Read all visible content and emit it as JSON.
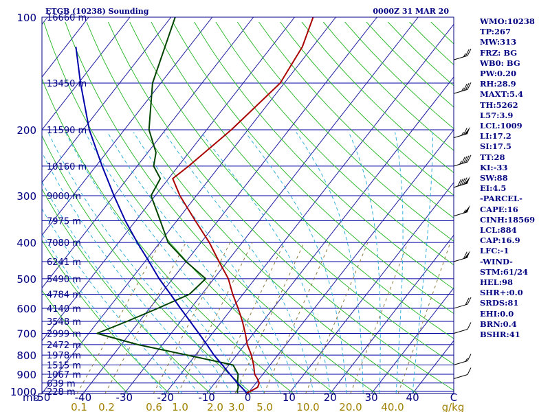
{
  "header": {
    "station_title": "ETGB (10238) Sounding",
    "time": "0000Z 31 MAR 20"
  },
  "colors": {
    "isobar": "#0000a0",
    "isotherm": "#1a1aa0",
    "dry_adiabat": "#33bb33",
    "moist_adiabat": "#33b0d8",
    "mixing_ratio": "#8c7a3c",
    "temperature": "#aa0000",
    "dewpoint": "#004400",
    "parcel": "#0000aa",
    "label": "#000080",
    "mixing_label": "#a08000"
  },
  "chart_data": {
    "type": "line",
    "diagram": "skew-t log-p",
    "axes": {
      "pressure_unit_label": "mb",
      "pressure_range": [
        1000,
        100
      ],
      "temperature_range_at_surface": [
        -50,
        50
      ],
      "mixing_ratio_unit": "g/kg",
      "grid": true
    },
    "pressure_ticks": [
      {
        "p": 100,
        "label": "100"
      },
      {
        "p": 200,
        "label": "200"
      },
      {
        "p": 300,
        "label": "300"
      },
      {
        "p": 400,
        "label": "400"
      },
      {
        "p": 500,
        "label": "500"
      },
      {
        "p": 600,
        "label": "600"
      },
      {
        "p": 700,
        "label": "700"
      },
      {
        "p": 800,
        "label": "800"
      },
      {
        "p": 900,
        "label": "900"
      },
      {
        "p": 1000,
        "label": "1000"
      }
    ],
    "temperature_ticks": [
      {
        "t": -50,
        "label": "-50"
      },
      {
        "t": -40,
        "label": "-40"
      },
      {
        "t": -30,
        "label": "-30"
      },
      {
        "t": -20,
        "label": "-20"
      },
      {
        "t": -10,
        "label": "-10"
      },
      {
        "t": 0,
        "label": "0"
      },
      {
        "t": 10,
        "label": "10"
      },
      {
        "t": 20,
        "label": "20"
      },
      {
        "t": 30,
        "label": "30"
      },
      {
        "t": 40,
        "label": "40"
      },
      {
        "t": 50,
        "label": "C"
      }
    ],
    "mixing_ratio_labels": [
      {
        "w": 0.1,
        "label": "0.1"
      },
      {
        "w": 0.2,
        "label": "0.2"
      },
      {
        "w": 0.6,
        "label": "0.6"
      },
      {
        "w": 1.0,
        "label": "1.0"
      },
      {
        "w": 2.0,
        "label": "2.0"
      },
      {
        "w": 3.0,
        "label": "3.0"
      },
      {
        "w": 5.0,
        "label": "5.0"
      },
      {
        "w": 10.0,
        "label": "10.0"
      },
      {
        "w": 20.0,
        "label": "20.0"
      },
      {
        "w": 40.0,
        "label": "40.0"
      },
      {
        "w": 0,
        "label": "g/kg"
      }
    ],
    "height_labels": [
      {
        "p": 100,
        "label": "16660 m"
      },
      {
        "p": 150,
        "label": "13450 m"
      },
      {
        "p": 200,
        "label": "11590 m"
      },
      {
        "p": 250,
        "label": "10160 m"
      },
      {
        "p": 300,
        "label": "9000 m"
      },
      {
        "p": 350,
        "label": "7975 m"
      },
      {
        "p": 400,
        "label": "7080 m"
      },
      {
        "p": 450,
        "label": "6241 m"
      },
      {
        "p": 500,
        "label": "5490 m"
      },
      {
        "p": 550,
        "label": "4784 m"
      },
      {
        "p": 600,
        "label": "4140 m"
      },
      {
        "p": 650,
        "label": "3548 m"
      },
      {
        "p": 700,
        "label": "2999 m"
      },
      {
        "p": 750,
        "label": "2472 m"
      },
      {
        "p": 800,
        "label": "1978 m"
      },
      {
        "p": 850,
        "label": "1515 m"
      },
      {
        "p": 900,
        "label": "1067 m"
      },
      {
        "p": 950,
        "label": "639 m"
      },
      {
        "p": 1000,
        "label": "228 m"
      }
    ],
    "series": [
      {
        "name": "temperature",
        "points": [
          [
            1011,
            -0.5
          ],
          [
            1000,
            0.2
          ],
          [
            975,
            1.2
          ],
          [
            950,
            0.8
          ],
          [
            925,
            -0.5
          ],
          [
            900,
            -2.0
          ],
          [
            850,
            -4.0
          ],
          [
            800,
            -6.4
          ],
          [
            750,
            -9.4
          ],
          [
            700,
            -12.0
          ],
          [
            650,
            -15.0
          ],
          [
            600,
            -18.5
          ],
          [
            550,
            -22.5
          ],
          [
            500,
            -26.5
          ],
          [
            450,
            -32.0
          ],
          [
            400,
            -38.0
          ],
          [
            350,
            -45.5
          ],
          [
            300,
            -54.0
          ],
          [
            270,
            -59.0
          ],
          [
            250,
            -57.5
          ],
          [
            200,
            -54.0
          ],
          [
            150,
            -51.0
          ],
          [
            120,
            -52.5
          ],
          [
            100,
            -55.5
          ]
        ]
      },
      {
        "name": "dewpoint",
        "points": [
          [
            1011,
            -2.5
          ],
          [
            1000,
            -3.0
          ],
          [
            975,
            -3.5
          ],
          [
            950,
            -4.5
          ],
          [
            900,
            -6.0
          ],
          [
            850,
            -9.0
          ],
          [
            800,
            -22.0
          ],
          [
            750,
            -36.0
          ],
          [
            700,
            -48.0
          ],
          [
            650,
            -43.0
          ],
          [
            600,
            -38.0
          ],
          [
            550,
            -33.0
          ],
          [
            500,
            -32.0
          ],
          [
            450,
            -40.0
          ],
          [
            400,
            -48.0
          ],
          [
            350,
            -54.0
          ],
          [
            300,
            -61.0
          ],
          [
            270,
            -62.0
          ],
          [
            250,
            -66.0
          ],
          [
            230,
            -68.0
          ],
          [
            200,
            -74.0
          ],
          [
            150,
            -82.0
          ],
          [
            100,
            -89.0
          ]
        ]
      },
      {
        "name": "parcel",
        "points": [
          [
            1011,
            -0.5
          ],
          [
            1000,
            -1.0
          ],
          [
            950,
            -4.5
          ],
          [
            900,
            -8.0
          ],
          [
            850,
            -11.6
          ],
          [
            800,
            -15.5
          ],
          [
            750,
            -19.2
          ],
          [
            700,
            -23.3
          ],
          [
            650,
            -27.7
          ],
          [
            600,
            -32.5
          ],
          [
            550,
            -37.6
          ],
          [
            500,
            -43.3
          ],
          [
            450,
            -49.0
          ],
          [
            400,
            -55.5
          ],
          [
            350,
            -62.5
          ],
          [
            300,
            -70.0
          ],
          [
            250,
            -78.5
          ],
          [
            200,
            -88.5
          ],
          [
            150,
            -99.5
          ],
          [
            120,
            -107.5
          ]
        ]
      }
    ],
    "wind_barbs": [
      {
        "p": 130,
        "speed": 25
      },
      {
        "p": 160,
        "speed": 35
      },
      {
        "p": 210,
        "speed": 65
      },
      {
        "p": 250,
        "speed": 45
      },
      {
        "p": 285,
        "speed": 90
      },
      {
        "p": 340,
        "speed": 55
      },
      {
        "p": 450,
        "speed": 60
      },
      {
        "p": 600,
        "speed": 20
      },
      {
        "p": 700,
        "speed": 10
      },
      {
        "p": 850,
        "speed": 15
      },
      {
        "p": 925,
        "speed": 10
      }
    ]
  },
  "indices": [
    "WMO:10238",
    "TP:267",
    "MW:313",
    "FRZ: BG",
    "WB0: BG",
    "PW:0.20",
    "RH:28.9",
    "MAXT:5.4",
    "TH:5262",
    "L57:3.9",
    "LCL:1009",
    "LI:17.2",
    "SI:17.5",
    "TT:28",
    "KI:-33",
    "SW:88",
    "EI:4.5",
    "-PARCEL-",
    "CAPE:16",
    "CINH:18569",
    "LCL:884",
    "CAP:16.9",
    "LFC:-1",
    "-WIND-",
    "STM:61/24",
    "HEL:98",
    "SHR+:0.0",
    "SRDS:81",
    "EHI:0.0",
    "BRN:0.4",
    "BSHR:41"
  ]
}
